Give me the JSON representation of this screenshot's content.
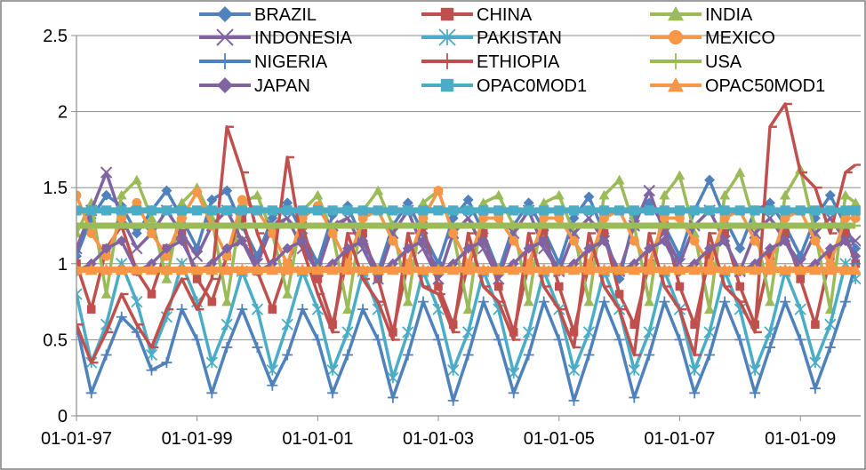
{
  "chart_data": {
    "type": "line",
    "title": "",
    "xlabel": "",
    "ylabel": "",
    "x_type": "date",
    "xlim": [
      "1997-01-01",
      "2010-01-01"
    ],
    "ylim": [
      0,
      2.5
    ],
    "y_ticks": [
      "0",
      "0.5",
      "1",
      "1.5",
      "2",
      "2.5"
    ],
    "x_ticks": [
      "1997-01-01",
      "1999-01-01",
      "2001-01-01",
      "2003-01-01",
      "2005-01-01",
      "2007-01-01",
      "2009-01-01"
    ],
    "x_tick_labels": [
      "01-01-97",
      "01-01-99",
      "01-01-01",
      "01-01-03",
      "01-01-05",
      "01-01-07",
      "01-01-09"
    ],
    "grid": "horizontal",
    "legend_position": "top",
    "x": [
      "1997-01-01",
      "1997-04-01",
      "1997-07-01",
      "1997-10-01",
      "1998-01-01",
      "1998-04-01",
      "1998-07-01",
      "1998-10-01",
      "1999-01-01",
      "1999-04-01",
      "1999-07-01",
      "1999-10-01",
      "2000-01-01",
      "2000-04-01",
      "2000-07-01",
      "2000-10-01",
      "2001-01-01",
      "2001-04-01",
      "2001-07-01",
      "2001-10-01",
      "2002-01-01",
      "2002-04-01",
      "2002-07-01",
      "2002-10-01",
      "2003-01-01",
      "2003-04-01",
      "2003-07-01",
      "2003-10-01",
      "2004-01-01",
      "2004-04-01",
      "2004-07-01",
      "2004-10-01",
      "2005-01-01",
      "2005-04-01",
      "2005-07-01",
      "2005-10-01",
      "2006-01-01",
      "2006-04-01",
      "2006-07-01",
      "2006-10-01",
      "2007-01-01",
      "2007-04-01",
      "2007-07-01",
      "2007-10-01",
      "2008-01-01",
      "2008-04-01",
      "2008-07-01",
      "2008-10-01",
      "2009-01-01",
      "2009-04-01",
      "2009-07-01",
      "2009-10-01",
      "2009-12-01"
    ],
    "series": [
      {
        "name": "BRAZIL",
        "color": "#4f81bd",
        "marker": "diamond",
        "values": [
          1.05,
          1.3,
          1.45,
          1.38,
          1.2,
          1.35,
          1.48,
          1.3,
          1.1,
          1.42,
          1.48,
          1.25,
          1.05,
          1.3,
          1.4,
          1.2,
          1.0,
          1.32,
          1.38,
          1.15,
          0.95,
          1.25,
          1.4,
          1.2,
          1.0,
          1.3,
          1.42,
          1.2,
          0.95,
          1.25,
          1.4,
          1.22,
          1.0,
          1.3,
          1.44,
          1.2,
          0.9,
          1.3,
          1.4,
          1.25,
          1.05,
          1.35,
          1.55,
          1.3,
          1.1,
          1.35,
          1.4,
          1.25,
          1.05,
          1.3,
          1.45,
          1.25,
          1.1
        ]
      },
      {
        "name": "CHINA",
        "color": "#c0504d",
        "marker": "square",
        "values": [
          1.0,
          0.7,
          1.1,
          1.25,
          0.95,
          0.8,
          1.1,
          1.2,
          0.9,
          0.75,
          1.05,
          1.3,
          0.95,
          0.7,
          1.0,
          1.25,
          0.9,
          0.6,
          1.05,
          1.2,
          0.9,
          0.55,
          1.0,
          1.25,
          0.85,
          0.6,
          1.0,
          1.2,
          0.85,
          0.55,
          1.0,
          1.22,
          0.85,
          0.55,
          1.0,
          1.2,
          0.8,
          0.6,
          1.0,
          1.25,
          0.85,
          0.6,
          1.05,
          1.2,
          0.85,
          0.6,
          1.05,
          1.2,
          0.9,
          0.6,
          1.05,
          1.2,
          1.0
        ]
      },
      {
        "name": "INDIA",
        "color": "#9bbb59",
        "marker": "triangle",
        "values": [
          1.2,
          1.4,
          0.8,
          1.45,
          1.55,
          1.3,
          0.9,
          1.4,
          1.5,
          1.3,
          0.75,
          1.4,
          1.45,
          1.2,
          0.8,
          1.35,
          1.45,
          1.2,
          0.7,
          1.35,
          1.48,
          1.25,
          0.75,
          1.4,
          1.48,
          1.2,
          0.7,
          1.4,
          1.45,
          1.25,
          0.75,
          1.4,
          1.45,
          1.2,
          0.75,
          1.45,
          1.55,
          1.25,
          0.75,
          1.45,
          1.58,
          1.2,
          0.7,
          1.45,
          1.6,
          1.25,
          0.75,
          1.45,
          1.62,
          1.2,
          0.7,
          1.45,
          1.4
        ]
      },
      {
        "name": "INDONESIA",
        "color": "#8064a2",
        "marker": "x",
        "values": [
          1.1,
          1.35,
          1.6,
          1.3,
          1.1,
          1.2,
          1.35,
          1.2,
          1.05,
          1.25,
          1.35,
          1.15,
          1.0,
          1.25,
          1.3,
          1.1,
          0.95,
          1.25,
          1.3,
          1.1,
          0.9,
          1.2,
          1.35,
          1.1,
          0.9,
          1.2,
          1.3,
          1.1,
          0.9,
          1.2,
          1.35,
          1.1,
          0.95,
          1.2,
          1.3,
          1.15,
          0.95,
          1.25,
          1.48,
          1.2,
          1.0,
          1.25,
          1.35,
          1.15,
          0.95,
          1.2,
          1.3,
          1.15,
          1.0,
          1.2,
          1.3,
          1.15,
          1.15
        ]
      },
      {
        "name": "PAKISTAN",
        "color": "#4bacc6",
        "marker": "asterisk",
        "values": [
          0.8,
          0.35,
          0.6,
          1.0,
          0.75,
          0.4,
          0.65,
          1.0,
          0.75,
          0.35,
          0.6,
          0.95,
          0.7,
          0.3,
          0.6,
          0.95,
          0.7,
          0.3,
          0.55,
          0.95,
          0.7,
          0.25,
          0.55,
          0.95,
          0.7,
          0.3,
          0.55,
          0.95,
          0.7,
          0.28,
          0.55,
          0.95,
          0.7,
          0.3,
          0.55,
          0.95,
          0.7,
          0.3,
          0.55,
          0.95,
          0.7,
          0.3,
          0.55,
          0.95,
          0.7,
          0.3,
          0.55,
          0.95,
          0.7,
          0.35,
          0.6,
          1.0,
          0.9
        ]
      },
      {
        "name": "MEXICO",
        "color": "#f79646",
        "marker": "circle",
        "values": [
          1.45,
          1.2,
          1.05,
          1.3,
          1.4,
          1.2,
          1.05,
          1.3,
          1.47,
          1.25,
          1.05,
          1.42,
          1.35,
          1.2,
          1.0,
          1.3,
          1.38,
          1.2,
          1.0,
          1.3,
          1.35,
          1.15,
          1.0,
          1.3,
          1.48,
          1.2,
          1.0,
          1.3,
          1.3,
          1.15,
          1.0,
          1.3,
          1.3,
          1.15,
          1.0,
          1.3,
          1.35,
          1.15,
          1.0,
          1.3,
          1.3,
          1.15,
          1.0,
          1.3,
          1.35,
          1.15,
          1.0,
          1.3,
          1.35,
          1.15,
          1.0,
          1.3,
          1.3
        ]
      },
      {
        "name": "NIGERIA",
        "color": "#4f81bd",
        "marker": "plus",
        "values": [
          0.6,
          0.15,
          0.4,
          0.65,
          0.55,
          0.3,
          0.35,
          0.7,
          0.5,
          0.15,
          0.45,
          0.7,
          0.45,
          0.2,
          0.4,
          0.7,
          0.5,
          0.15,
          0.4,
          0.7,
          0.5,
          0.12,
          0.4,
          0.75,
          0.5,
          0.1,
          0.4,
          0.75,
          0.5,
          0.15,
          0.4,
          0.75,
          0.5,
          0.1,
          0.4,
          0.75,
          0.5,
          0.12,
          0.4,
          0.75,
          0.5,
          0.15,
          0.4,
          0.75,
          0.5,
          0.15,
          0.45,
          0.75,
          0.5,
          0.18,
          0.45,
          0.75,
          1.0
        ]
      },
      {
        "name": "ETHIOPIA",
        "color": "#c0504d",
        "marker": "dash",
        "values": [
          0.6,
          0.35,
          0.55,
          0.8,
          0.6,
          0.45,
          0.7,
          0.9,
          0.7,
          0.9,
          1.9,
          1.6,
          1.2,
          0.95,
          1.7,
          1.1,
          0.8,
          0.55,
          1.2,
          0.9,
          0.75,
          0.5,
          1.2,
          0.85,
          0.8,
          0.55,
          1.2,
          0.85,
          0.75,
          0.5,
          1.2,
          0.85,
          0.7,
          0.45,
          1.2,
          0.85,
          0.7,
          0.4,
          1.2,
          0.85,
          0.7,
          0.4,
          1.2,
          0.85,
          0.75,
          0.55,
          1.9,
          2.05,
          1.6,
          1.5,
          1.2,
          1.6,
          1.65
        ]
      },
      {
        "name": "USA",
        "color": "#9bbb59",
        "marker": "dash",
        "values": [
          1.25,
          1.25,
          1.25,
          1.25,
          1.25,
          1.25,
          1.25,
          1.25,
          1.25,
          1.25,
          1.25,
          1.25,
          1.25,
          1.25,
          1.25,
          1.25,
          1.25,
          1.25,
          1.25,
          1.25,
          1.25,
          1.25,
          1.25,
          1.25,
          1.25,
          1.25,
          1.25,
          1.25,
          1.25,
          1.25,
          1.25,
          1.25,
          1.25,
          1.25,
          1.25,
          1.25,
          1.25,
          1.25,
          1.25,
          1.25,
          1.25,
          1.25,
          1.25,
          1.25,
          1.25,
          1.25,
          1.25,
          1.25,
          1.25,
          1.25,
          1.25,
          1.25,
          1.25
        ]
      },
      {
        "name": "JAPAN",
        "color": "#8064a2",
        "marker": "diamond",
        "values": [
          0.95,
          1.0,
          1.1,
          1.15,
          0.95,
          1.0,
          1.1,
          1.15,
          0.95,
          1.0,
          1.1,
          1.15,
          0.95,
          1.0,
          1.1,
          1.15,
          0.95,
          1.0,
          1.1,
          1.15,
          0.95,
          1.0,
          1.1,
          1.15,
          0.95,
          1.0,
          1.1,
          1.15,
          0.95,
          1.0,
          1.1,
          1.15,
          0.95,
          1.0,
          1.1,
          1.15,
          0.95,
          1.0,
          1.1,
          1.15,
          0.95,
          1.0,
          1.1,
          1.15,
          0.95,
          1.0,
          1.1,
          1.15,
          0.95,
          1.0,
          1.1,
          1.15,
          1.05
        ]
      },
      {
        "name": "OPAC0MOD1",
        "color": "#4bacc6",
        "marker": "square",
        "values": [
          1.35,
          1.35,
          1.35,
          1.35,
          1.35,
          1.35,
          1.35,
          1.35,
          1.35,
          1.35,
          1.35,
          1.35,
          1.35,
          1.35,
          1.35,
          1.35,
          1.35,
          1.35,
          1.35,
          1.35,
          1.35,
          1.35,
          1.35,
          1.35,
          1.35,
          1.35,
          1.35,
          1.35,
          1.35,
          1.35,
          1.35,
          1.35,
          1.35,
          1.35,
          1.35,
          1.35,
          1.35,
          1.35,
          1.35,
          1.35,
          1.35,
          1.35,
          1.35,
          1.35,
          1.35,
          1.35,
          1.35,
          1.35,
          1.35,
          1.35,
          1.35,
          1.35,
          1.35
        ]
      },
      {
        "name": "OPAC50MOD1",
        "color": "#f79646",
        "marker": "triangle",
        "values": [
          0.96,
          0.96,
          0.96,
          0.96,
          0.96,
          0.96,
          0.96,
          0.96,
          0.96,
          0.96,
          0.96,
          0.96,
          0.96,
          0.96,
          0.96,
          0.96,
          0.96,
          0.96,
          0.96,
          0.96,
          0.96,
          0.96,
          0.96,
          0.96,
          0.96,
          0.96,
          0.96,
          0.96,
          0.96,
          0.96,
          0.96,
          0.96,
          0.96,
          0.96,
          0.96,
          0.96,
          0.96,
          0.96,
          0.96,
          0.96,
          0.96,
          0.96,
          0.96,
          0.96,
          0.96,
          0.96,
          0.96,
          0.96,
          0.96,
          0.96,
          0.96,
          0.96,
          0.96
        ]
      }
    ]
  }
}
